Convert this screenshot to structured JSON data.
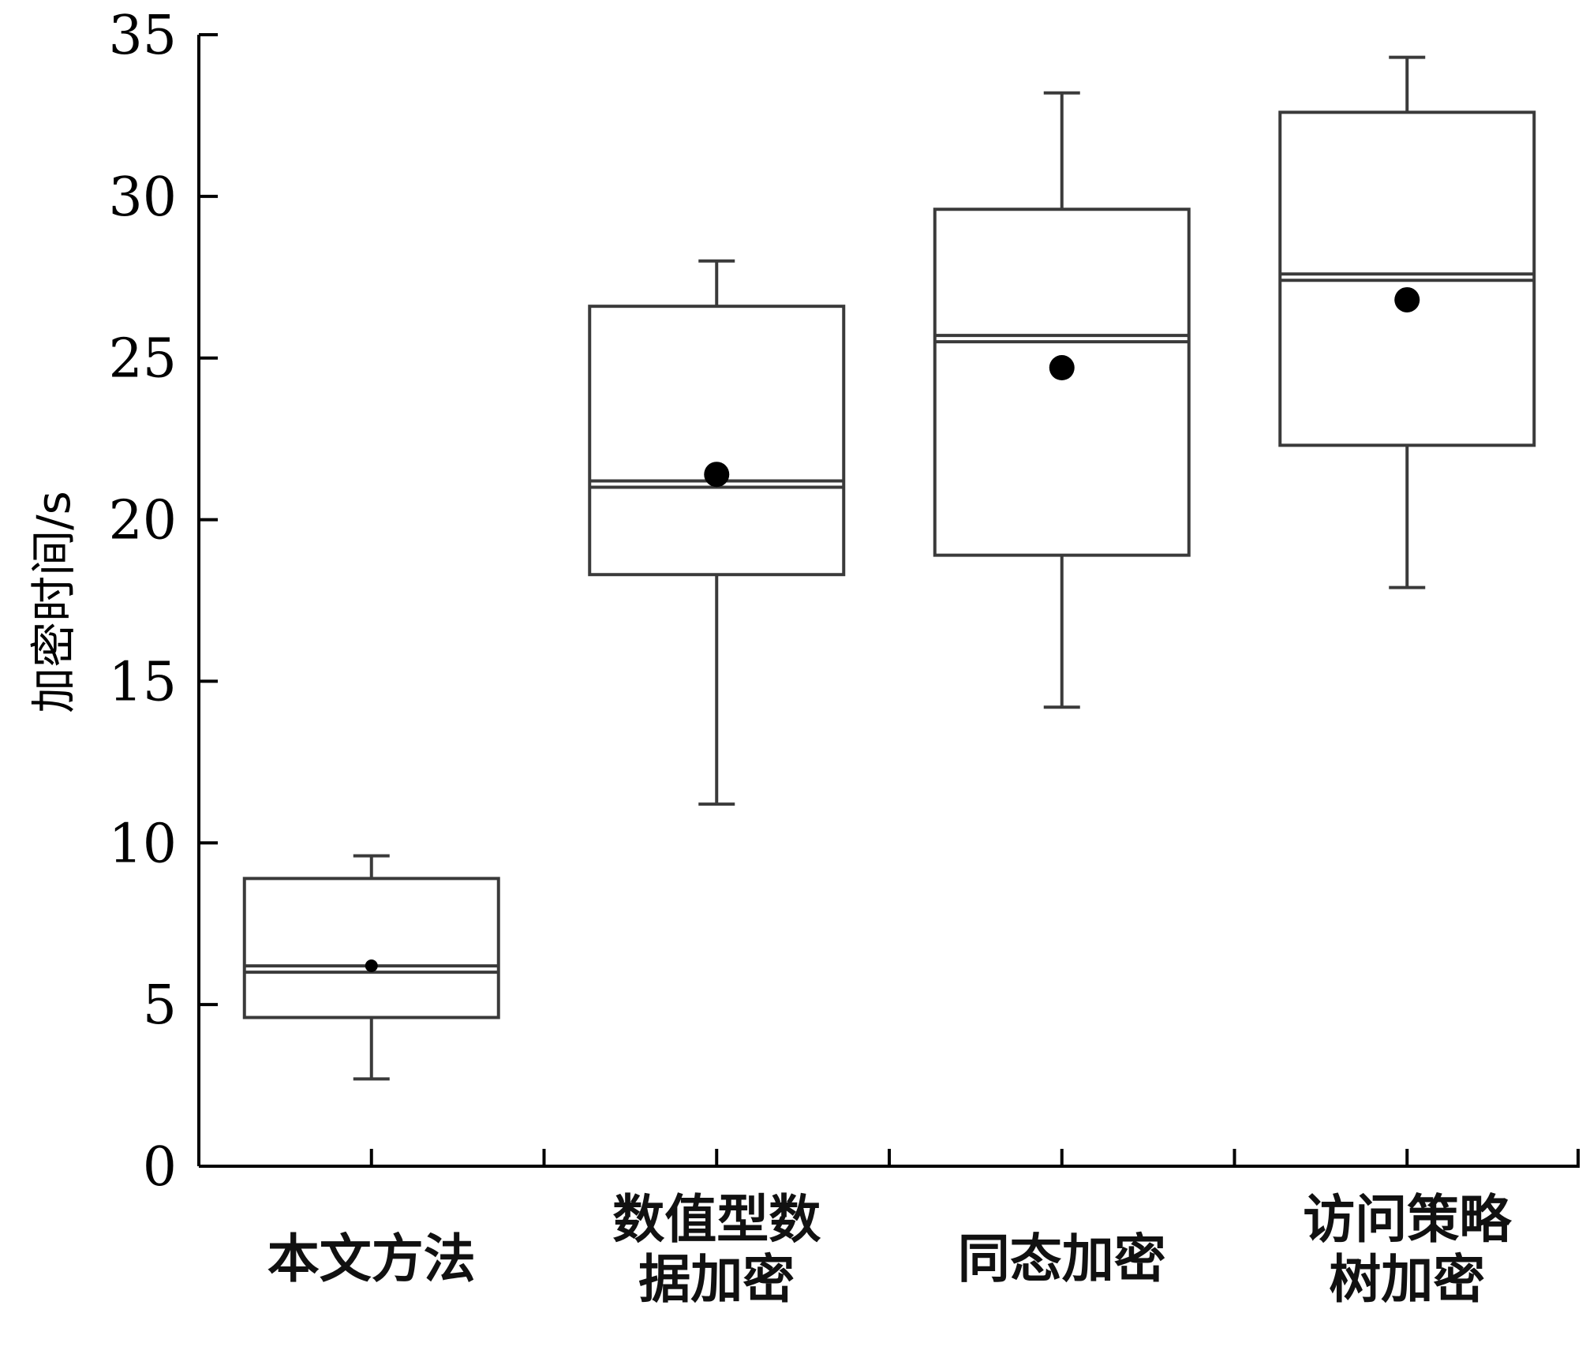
{
  "chart_data": {
    "type": "box",
    "ylabel": "加密时间/s",
    "xlabel": "",
    "title": "",
    "ylim": [
      0,
      35
    ],
    "yticks": [
      0,
      5,
      10,
      15,
      20,
      25,
      30,
      35
    ],
    "grid": false,
    "categories": [
      [
        "本文方法"
      ],
      [
        "数值型数",
        "据加密"
      ],
      [
        "同态加密"
      ],
      [
        "访问策略",
        "树加密"
      ]
    ],
    "boxes": [
      {
        "min": 2.7,
        "q1": 4.6,
        "median": 6.1,
        "q3": 8.9,
        "max": 9.6,
        "mean": 6.2
      },
      {
        "min": 11.2,
        "q1": 18.3,
        "median": 21.1,
        "q3": 26.6,
        "max": 28.0,
        "mean": 21.4
      },
      {
        "min": 14.2,
        "q1": 18.9,
        "median": 25.6,
        "q3": 29.6,
        "max": 33.2,
        "mean": 24.7
      },
      {
        "min": 17.9,
        "q1": 22.3,
        "median": 27.5,
        "q3": 32.6,
        "max": 34.3,
        "mean": 26.8
      }
    ],
    "colors": {
      "box_stroke": "#3a3a3a",
      "mean_marker": "#000000",
      "axis": "#000000"
    }
  }
}
